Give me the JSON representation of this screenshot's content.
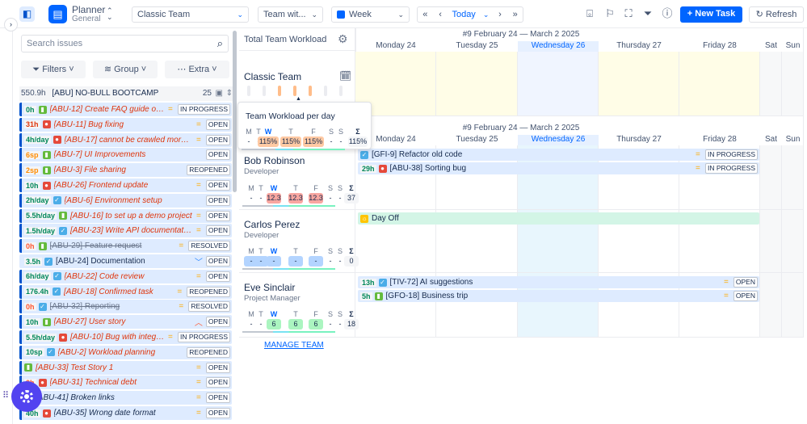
{
  "app": {
    "title": "Planner",
    "subtitle": "General"
  },
  "toolbar": {
    "team_select": "Classic Team",
    "view_select": "Team wit...",
    "period_select": "Week",
    "today": "Today",
    "new_task": "New Task",
    "refresh": "Refresh",
    "accent": "#0065ff"
  },
  "left": {
    "search_placeholder": "Search issues",
    "filters": "Filters",
    "group": "Group",
    "extra": "Extra",
    "group_header": {
      "hours": "550.9h",
      "name": "[ABU] NO-BULL BOOTCAMP",
      "count": "25"
    },
    "items": [
      {
        "time": "0h",
        "tc": "#00875a",
        "type": "story",
        "title": "[ABU-12] Create FAQ guide on how to ...",
        "style": "",
        "pr": "medium",
        "status": "IN PROGRESS"
      },
      {
        "time": "31h",
        "tc": "#de350b",
        "type": "bug",
        "title": "[ABU-11] Bug fixing",
        "style": "",
        "pr": "medium",
        "status": "OPEN"
      },
      {
        "time": "4h/day",
        "tc": "#00875a",
        "type": "bug",
        "title": "[ABU-17] cannot be crawled more than ...",
        "style": "",
        "pr": "medium",
        "status": "OPEN"
      },
      {
        "time": "6sp",
        "tc": "#ff8b00",
        "type": "story",
        "title": "[ABU-7] UI Improvements",
        "style": "",
        "pr": "",
        "status": "OPEN"
      },
      {
        "time": "2sp",
        "tc": "#ff8b00",
        "type": "story",
        "title": "[ABU-3] File sharing",
        "style": "",
        "pr": "",
        "status": "REOPENED"
      },
      {
        "time": "10h",
        "tc": "#00875a",
        "type": "bug",
        "title": "[ABU-26] Frontend update",
        "style": "",
        "pr": "medium",
        "status": "OPEN"
      },
      {
        "time": "2h/day",
        "tc": "#00875a",
        "type": "task",
        "title": "[ABU-6] Environment setup",
        "style": "",
        "pr": "",
        "status": "OPEN"
      },
      {
        "time": "5.5h/day",
        "tc": "#00875a",
        "type": "story",
        "title": "[ABU-16] to set up a demo project",
        "style": "",
        "pr": "medium",
        "status": "OPEN"
      },
      {
        "time": "1.5h/day",
        "tc": "#00875a",
        "type": "task",
        "title": "[ABU-23] Write API documentation",
        "style": "",
        "pr": "medium",
        "status": "OPEN"
      },
      {
        "time": "0h",
        "tc": "#ff5630",
        "type": "story",
        "title": "[ABU-29] Feature request",
        "style": "strike",
        "pr": "medium",
        "status": "RESOLVED"
      },
      {
        "time": "3.5h",
        "tc": "#00875a",
        "type": "task",
        "title": "[ABU-24] Documentation",
        "style": "norm",
        "pr": "low",
        "status": "OPEN"
      },
      {
        "time": "6h/day",
        "tc": "#00875a",
        "type": "task",
        "title": "[ABU-22] Code review",
        "style": "",
        "pr": "medium",
        "status": "OPEN"
      },
      {
        "time": "176.4h",
        "tc": "#00875a",
        "type": "task",
        "title": "[ABU-18] Confirmed task",
        "style": "",
        "pr": "medium",
        "status": "REOPENED"
      },
      {
        "time": "0h",
        "tc": "#ff5630",
        "type": "task",
        "title": "[ABU-32] Reporting",
        "style": "strike",
        "pr": "medium",
        "status": "RESOLVED"
      },
      {
        "time": "10h",
        "tc": "#00875a",
        "type": "story",
        "title": "[ABU-27] User story",
        "style": "",
        "pr": "high",
        "status": "OPEN"
      },
      {
        "time": "5.5h/day",
        "tc": "#00875a",
        "type": "bug",
        "title": "[ABU-10] Bug with integrations",
        "style": "",
        "pr": "medium",
        "status": "IN PROGRESS"
      },
      {
        "time": "10sp",
        "tc": "#00875a",
        "type": "task",
        "title": "[ABU-2] Workload planning",
        "style": "",
        "pr": "",
        "status": "REOPENED"
      },
      {
        "time": "",
        "tc": "#00875a",
        "type": "story",
        "title": "[ABU-33] Test Story 1",
        "style": "",
        "pr": "medium",
        "status": "OPEN"
      },
      {
        "time": "0h",
        "tc": "#ff5630",
        "type": "bug",
        "title": "[ABU-31] Technical debt",
        "style": "",
        "pr": "medium",
        "status": "OPEN"
      },
      {
        "time": "",
        "tc": "#00875a",
        "type": "bug",
        "title": "[ABU-41] Broken links",
        "style": "dark",
        "pr": "medium",
        "status": "OPEN"
      },
      {
        "time": "40h",
        "tc": "#00875a",
        "type": "bug",
        "title": "[ABU-35] Wrong date format",
        "style": "dark",
        "pr": "medium",
        "status": "OPEN"
      }
    ]
  },
  "workload": {
    "title": "Total Team Workload",
    "team": "Classic Team",
    "tooltip_title": "Team Workload per day",
    "days": [
      "M",
      "T",
      "W",
      "T",
      "F",
      "S",
      "S"
    ],
    "sigma": "Σ",
    "tooltip_values": [
      "-",
      "-",
      "115%",
      "115%",
      "115%",
      "-",
      "-"
    ],
    "tooltip_total": "115%"
  },
  "calendar": {
    "week_label": "#9 February 24 — March 2 2025",
    "days": [
      "Monday 24",
      "Tuesday 25",
      "Wednesday 26",
      "Thursday 27",
      "Friday 28",
      "Sat",
      "Sun"
    ]
  },
  "members": [
    {
      "name": "Bob Robinson",
      "role": "Developer",
      "values": [
        "-",
        "-",
        "12.3",
        "12.3",
        "12.3",
        "-",
        "-"
      ],
      "total": "37",
      "tasks": [
        {
          "time": "",
          "type": "task",
          "title": "[GFI-9] Refactor old code",
          "status": "IN PROGRESS"
        },
        {
          "time": "29h",
          "type": "bug",
          "title": "[ABU-38] Sorting bug",
          "status": "IN PROGRESS"
        }
      ]
    },
    {
      "name": "Carlos Perez",
      "role": "Developer",
      "values": [
        "-",
        "-",
        "-",
        "-",
        "-",
        "-",
        "-"
      ],
      "total": "0",
      "dayoff": "Day Off",
      "tasks": []
    },
    {
      "name": "Eve Sinclair",
      "role": "Project Manager",
      "values": [
        "-",
        "-",
        "6",
        "6",
        "6",
        "-",
        "-"
      ],
      "total": "18",
      "tasks": [
        {
          "time": "13h",
          "type": "task",
          "title": "[TIV-72] AI suggestions",
          "status": "OPEN"
        },
        {
          "time": "5h",
          "type": "story",
          "title": "[GFO-18] Business trip",
          "status": "OPEN"
        }
      ]
    }
  ],
  "manage_team": "MANAGE TEAM"
}
